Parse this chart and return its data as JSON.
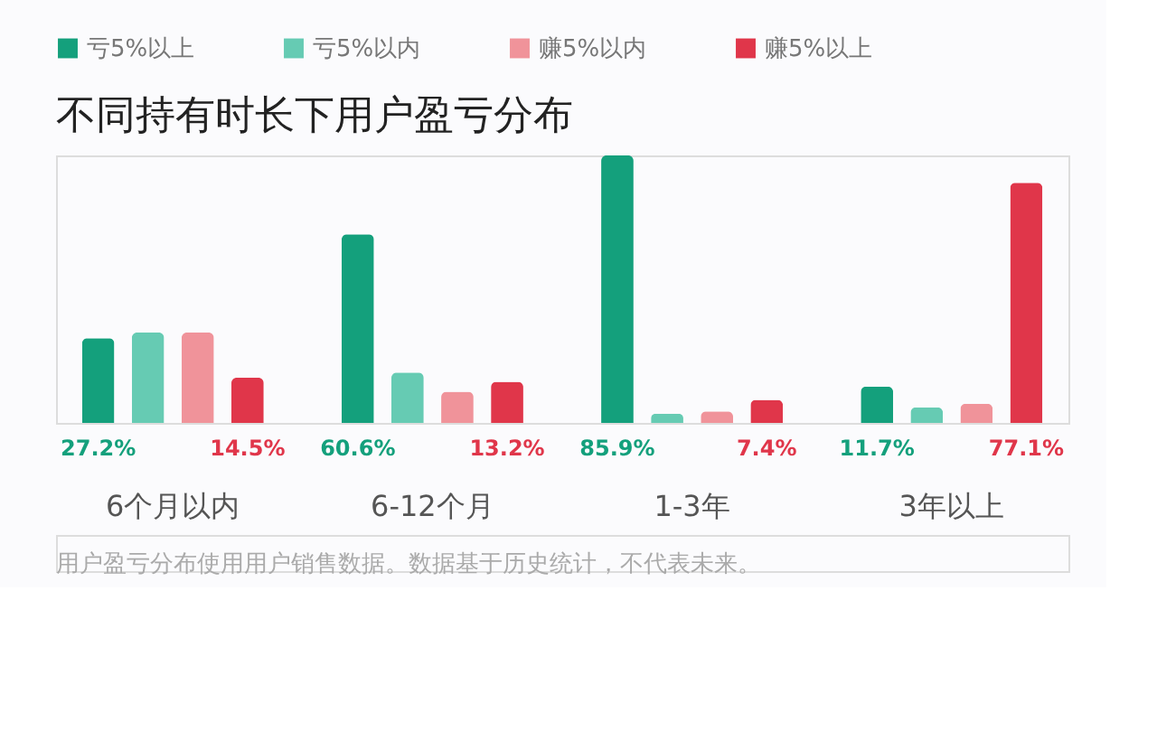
{
  "chart_data": {
    "type": "bar",
    "title": "不同持有时长下用户盈亏分布",
    "categories": [
      "6个月以内",
      "6-12个月",
      "1-3年",
      "3年以上"
    ],
    "series": [
      {
        "name": "亏5%以上",
        "color": "#14a07c",
        "values": [
          27.2,
          60.6,
          85.9,
          11.7
        ],
        "value_labels": [
          "27.2%",
          "60.6%",
          "85.9%",
          "11.7%"
        ]
      },
      {
        "name": "亏5%以内",
        "color": "#66cbb3",
        "values": [
          29,
          16.2,
          3,
          5
        ]
      },
      {
        "name": "赚5%以内",
        "color": "#f0939a",
        "values": [
          29,
          10,
          3.7,
          6.2
        ]
      },
      {
        "name": "赚5%以上",
        "color": "#e0364a",
        "values": [
          14.5,
          13.2,
          7.4,
          77.1
        ],
        "value_labels": [
          "14.5%",
          "13.2%",
          "7.4%",
          "77.1%"
        ]
      }
    ],
    "legend": "top left",
    "grid": false,
    "annotations": [
      "用户盈亏分布使用用户销售数据。数据基于历史统计，不代表未来。"
    ]
  }
}
